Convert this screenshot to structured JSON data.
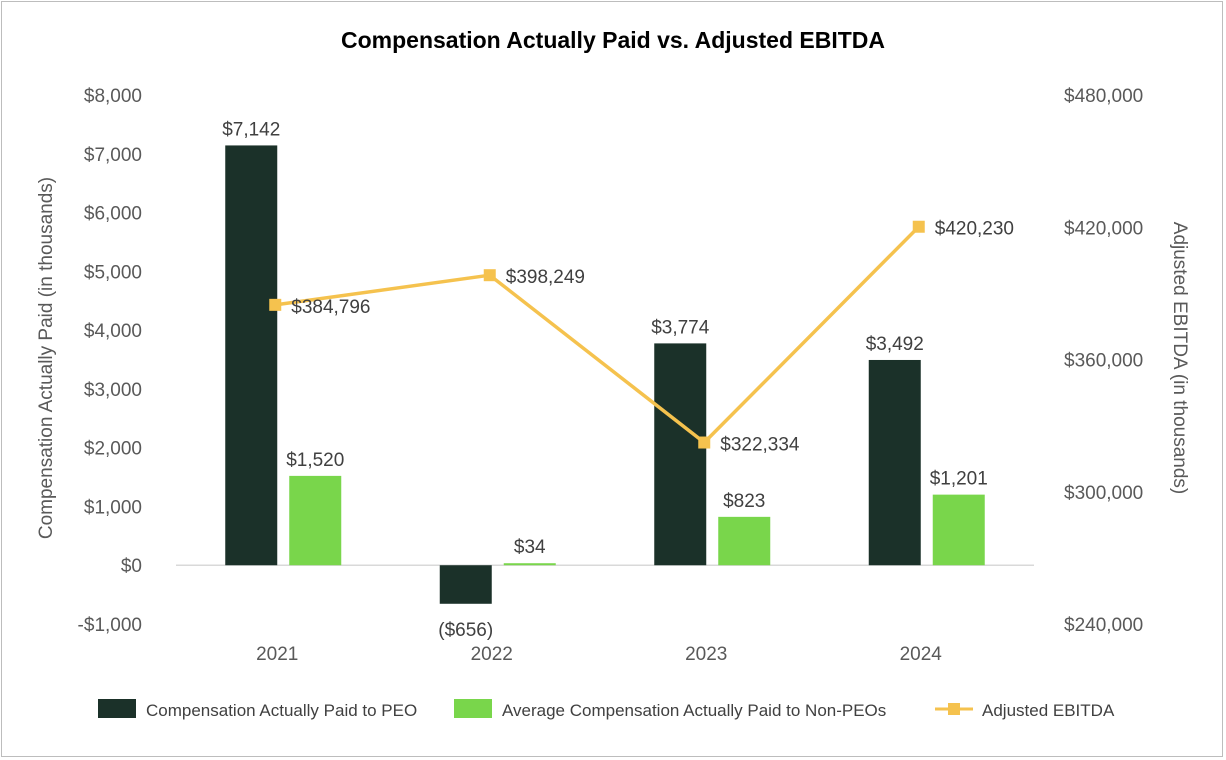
{
  "chart_data": {
    "type": "bar+line",
    "title": "Compensation Actually Paid vs. Adjusted EBITDA",
    "categories": [
      "2021",
      "2022",
      "2023",
      "2024"
    ],
    "ylabel": "Compensation Actually Paid (in thousands)",
    "y2label": "Adjusted EBITDA (in thousands)",
    "ylim": [
      -1000,
      8000
    ],
    "y2lim": [
      240000,
      480000
    ],
    "yticks": [
      8000,
      7000,
      6000,
      5000,
      4000,
      3000,
      2000,
      1000,
      0,
      -1000
    ],
    "yticklabels": [
      "$8,000",
      "$7,000",
      "$6,000",
      "$5,000",
      "$4,000",
      "$3,000",
      "$2,000",
      "$1,000",
      "$0",
      "-$1,000"
    ],
    "y2ticks": [
      480000,
      420000,
      360000,
      300000,
      240000
    ],
    "y2ticklabels": [
      "$480,000",
      "$420,000",
      "$360,000",
      "$300,000",
      "$240,000"
    ],
    "series": [
      {
        "name": "Compensation Actually Paid to PEO",
        "type": "bar",
        "axis": "left",
        "color": "#1b3129",
        "values": [
          7142,
          -656,
          3774,
          3492
        ],
        "labels": [
          "$7,142",
          "($656)",
          "$3,774",
          "$3,492"
        ]
      },
      {
        "name": "Average Compensation Actually Paid to Non-PEOs",
        "type": "bar",
        "axis": "left",
        "color": "#79d64b",
        "values": [
          1520,
          34,
          823,
          1201
        ],
        "labels": [
          "$1,520",
          "$34",
          "$823",
          "$1,201"
        ]
      },
      {
        "name": "Adjusted EBITDA",
        "type": "line",
        "axis": "right",
        "color": "#f5c24e",
        "values": [
          384796,
          398249,
          322334,
          420230
        ],
        "labels": [
          "$384,796",
          "$398,249",
          "$322,334",
          "$420,230"
        ]
      }
    ],
    "legend_position": "bottom"
  }
}
